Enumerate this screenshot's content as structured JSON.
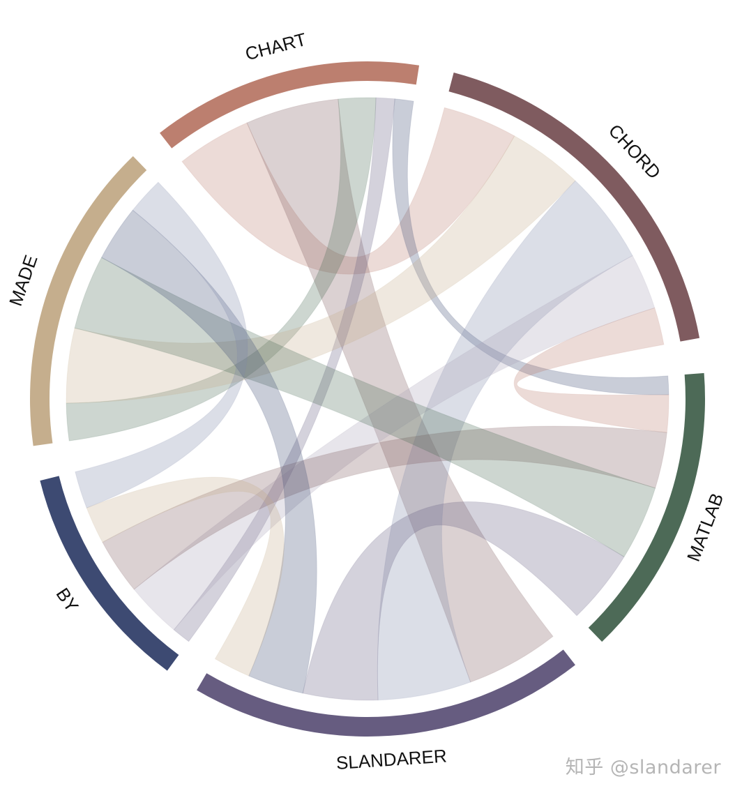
{
  "chart_data": {
    "type": "chord",
    "groups": [
      {
        "name": "CHART",
        "color": "#BC7F6F"
      },
      {
        "name": "CHORD",
        "color": "#7F5B5F"
      },
      {
        "name": "MATLAB",
        "color": "#4D6A57"
      },
      {
        "name": "SLANDARER",
        "color": "#665C80"
      },
      {
        "name": "BY",
        "color": "#3D4A72"
      },
      {
        "name": "MADE",
        "color": "#C5AE8D"
      }
    ],
    "chord_colors": [
      "#BC7F6F",
      "#7F5B5F",
      "#4D6A57",
      "#665C80",
      "#3D4A72",
      "#C5AE8D",
      "#7E89A8",
      "#A9A1B8"
    ],
    "links": [
      {
        "from": "CHART",
        "to": "CHORD",
        "value": 4
      },
      {
        "from": "CHART",
        "to": "SLANDARER",
        "value": 5
      },
      {
        "from": "CHART",
        "to": "MADE",
        "value": 2
      },
      {
        "from": "CHART",
        "to": "BY",
        "value": 1
      },
      {
        "from": "CHART",
        "to": "MATLAB",
        "value": 1
      },
      {
        "from": "CHORD",
        "to": "MADE",
        "value": 4
      },
      {
        "from": "CHORD",
        "to": "SLANDARER",
        "value": 5
      },
      {
        "from": "CHORD",
        "to": "BY",
        "value": 3
      },
      {
        "from": "CHORD",
        "to": "MATLAB",
        "value": 2
      },
      {
        "from": "MATLAB",
        "to": "BY",
        "value": 3
      },
      {
        "from": "MATLAB",
        "to": "MADE",
        "value": 4
      },
      {
        "from": "MATLAB",
        "to": "SLANDARER",
        "value": 4
      },
      {
        "from": "SLANDARER",
        "to": "MADE",
        "value": 3
      },
      {
        "from": "SLANDARER",
        "to": "BY",
        "value": 2
      },
      {
        "from": "BY",
        "to": "MADE",
        "value": 2
      }
    ]
  },
  "watermark": "知乎 @slandarer"
}
